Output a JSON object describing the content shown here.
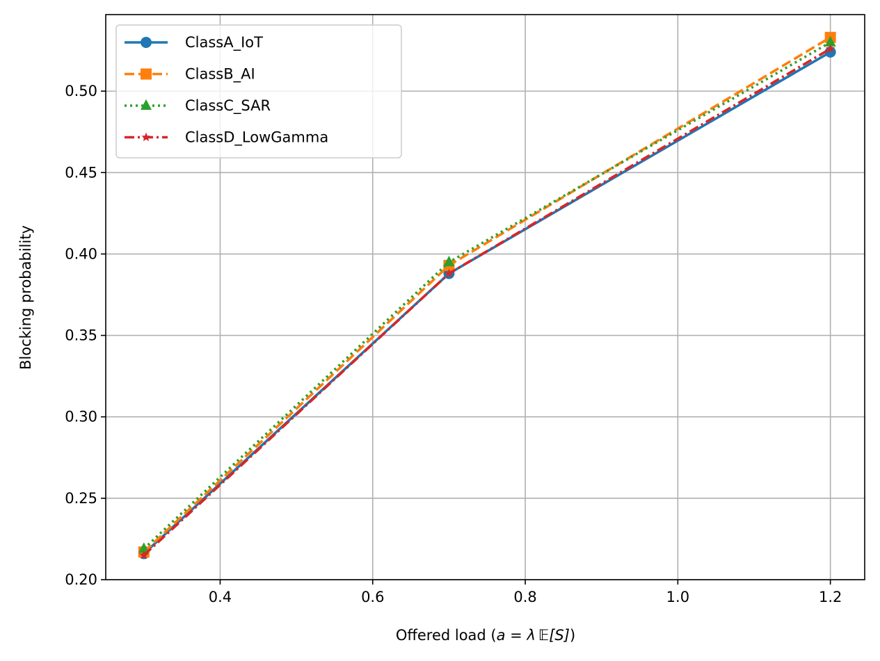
{
  "chart_data": {
    "type": "line",
    "title": "",
    "xlabel": {
      "prefix": "Offered load (",
      "a": "a",
      "eq": " = ",
      "lambda": "λ",
      "E": "𝔼",
      "S": "[S]",
      "suffix": ")"
    },
    "ylabel": "Blocking probability",
    "xlim": [
      0.25,
      1.245
    ],
    "ylim": [
      0.2,
      0.547
    ],
    "xticks": [
      0.4,
      0.6,
      0.8,
      1.0,
      1.2
    ],
    "xtick_labels": [
      "0.4",
      "0.6",
      "0.8",
      "1.0",
      "1.2"
    ],
    "yticks": [
      0.2,
      0.25,
      0.3,
      0.35,
      0.4,
      0.45,
      0.5
    ],
    "ytick_labels": [
      "0.20",
      "0.25",
      "0.30",
      "0.35",
      "0.40",
      "0.45",
      "0.50"
    ],
    "grid": true,
    "legend_position": "top-left",
    "x": [
      0.3,
      0.7,
      1.2
    ],
    "series": [
      {
        "name": "ClassA_IoT",
        "values": [
          0.216,
          0.388,
          0.524
        ],
        "color": "#1f77b4",
        "linestyle": "solid",
        "marker": "circle"
      },
      {
        "name": "ClassB_AI",
        "values": [
          0.217,
          0.393,
          0.533
        ],
        "color": "#ff7f0e",
        "linestyle": "dashed",
        "marker": "square"
      },
      {
        "name": "ClassC_SAR",
        "values": [
          0.219,
          0.395,
          0.53
        ],
        "color": "#2ca02c",
        "linestyle": "dotted",
        "marker": "triangle"
      },
      {
        "name": "ClassD_LowGamma",
        "values": [
          0.215,
          0.388,
          0.526
        ],
        "color": "#d62728",
        "linestyle": "dashdot",
        "marker": "star"
      }
    ]
  }
}
